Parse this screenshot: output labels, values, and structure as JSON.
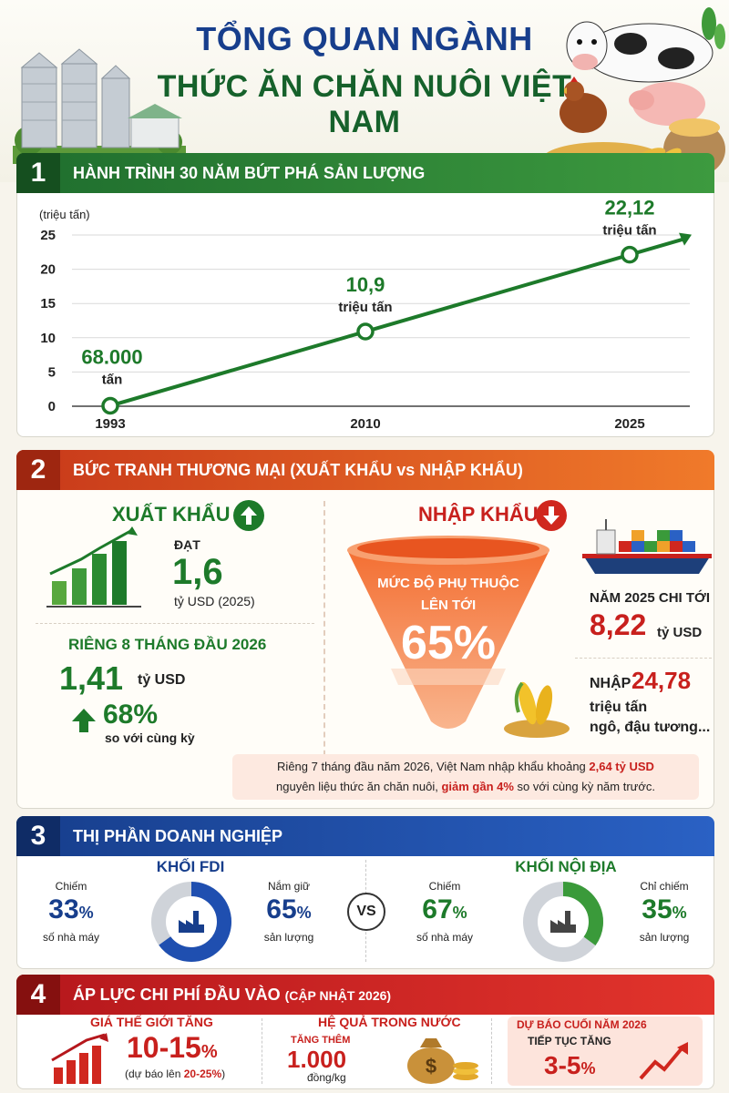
{
  "header": {
    "title_line1": "TỔNG QUAN NGÀNH",
    "title_line2": "THỨC ĂN CHĂN NUÔI VIỆT NAM"
  },
  "section1": {
    "number": "1",
    "title": "HÀNH TRÌNH 30 NĂM BỨT PHÁ SẢN LƯỢNG",
    "chart_data": {
      "type": "line",
      "ylabel": "(triệu tấn)",
      "ylim": [
        0,
        25
      ],
      "yticks": [
        "0",
        "5",
        "10",
        "15",
        "20",
        "25"
      ],
      "x": [
        "1993",
        "2010",
        "2025"
      ],
      "values": [
        0.068,
        10.9,
        22.12
      ],
      "point_labels": [
        {
          "value": "68.000",
          "unit": "tấn"
        },
        {
          "value": "10,9",
          "unit": "triệu tấn"
        },
        {
          "value": "22,12",
          "unit": "triệu tấn"
        }
      ],
      "colors": {
        "line": "#1d7a2a"
      }
    }
  },
  "section2": {
    "number": "2",
    "title": "BỨC TRANH THƯƠNG MẠI (XUẤT KHẨU vs NHẬP KHẨU)",
    "export": {
      "label": "XUẤT KHẨU",
      "reach_label": "ĐẠT",
      "value": "1,6",
      "unit": "tỷ USD (2025)",
      "sub_label": "RIÊNG 8 THÁNG ĐẦU 2026",
      "sub_value": "1,41",
      "sub_unit": "tỷ USD",
      "growth": "68%",
      "growth_note": "so với cùng kỳ"
    },
    "import": {
      "label": "NHẬP KHẨU",
      "funnel_line1": "MỨC ĐỘ PHỤ THUỘC",
      "funnel_line2": "LÊN TỚI",
      "funnel_value": "65%",
      "year_label": "NĂM 2025 CHI TỚI",
      "year_value": "8,22",
      "year_unit": "tỷ USD",
      "import_prefix": "NHẬP",
      "import_value": "24,78",
      "import_unit": "triệu tấn",
      "import_items": "ngô, đậu tương..."
    },
    "note": {
      "part1": "Riêng 7 tháng đầu năm 2026, Việt Nam nhập khẩu khoảng ",
      "highlight1": "2,64 tỷ USD",
      "part2": "nguyên liệu thức ăn chăn nuôi, ",
      "highlight2": "giảm gần 4%",
      "part3": " so với cùng kỳ năm trước."
    }
  },
  "section3": {
    "number": "3",
    "title": "THỊ PHẦN DOANH NGHIỆP",
    "fdi": {
      "label": "KHỐI FDI",
      "left_caption": "Chiếm",
      "left_value": "33",
      "left_sub": "số nhà máy",
      "right_caption": "Nắm giữ",
      "right_value": "65",
      "right_sub": "sản lượng",
      "ring_share": 0.65,
      "color": "#1f4fb0"
    },
    "vs": "VS",
    "domestic": {
      "label": "KHỐI NỘI ĐỊA",
      "left_caption": "Chiếm",
      "left_value": "67",
      "left_sub": "số nhà máy",
      "right_caption": "Chỉ chiếm",
      "right_value": "35",
      "right_sub": "sản lượng",
      "ring_share": 0.35,
      "color": "#3a9a3a"
    },
    "percent_sign": "%"
  },
  "section4": {
    "number": "4",
    "title": "ÁP LỰC CHI PHÍ ĐẦU VÀO",
    "title_suffix": "(CẬP NHẬT 2026)",
    "world": {
      "label": "GIÁ THẾ GIỚI TĂNG",
      "value": "10-15",
      "percent": "%",
      "note_prefix": "(dự báo lên ",
      "note_value": "20-25%",
      "note_suffix": ")"
    },
    "domestic": {
      "label": "HỆ QUẢ TRONG NƯỚC",
      "increase_label": "TĂNG THÊM",
      "value": "1.000",
      "unit": "đồng/kg"
    },
    "forecast": {
      "label": "DỰ BÁO CUỐI NĂM 2026",
      "sub_label": "TIẾP TỤC TĂNG",
      "value": "3-5",
      "percent": "%"
    }
  }
}
